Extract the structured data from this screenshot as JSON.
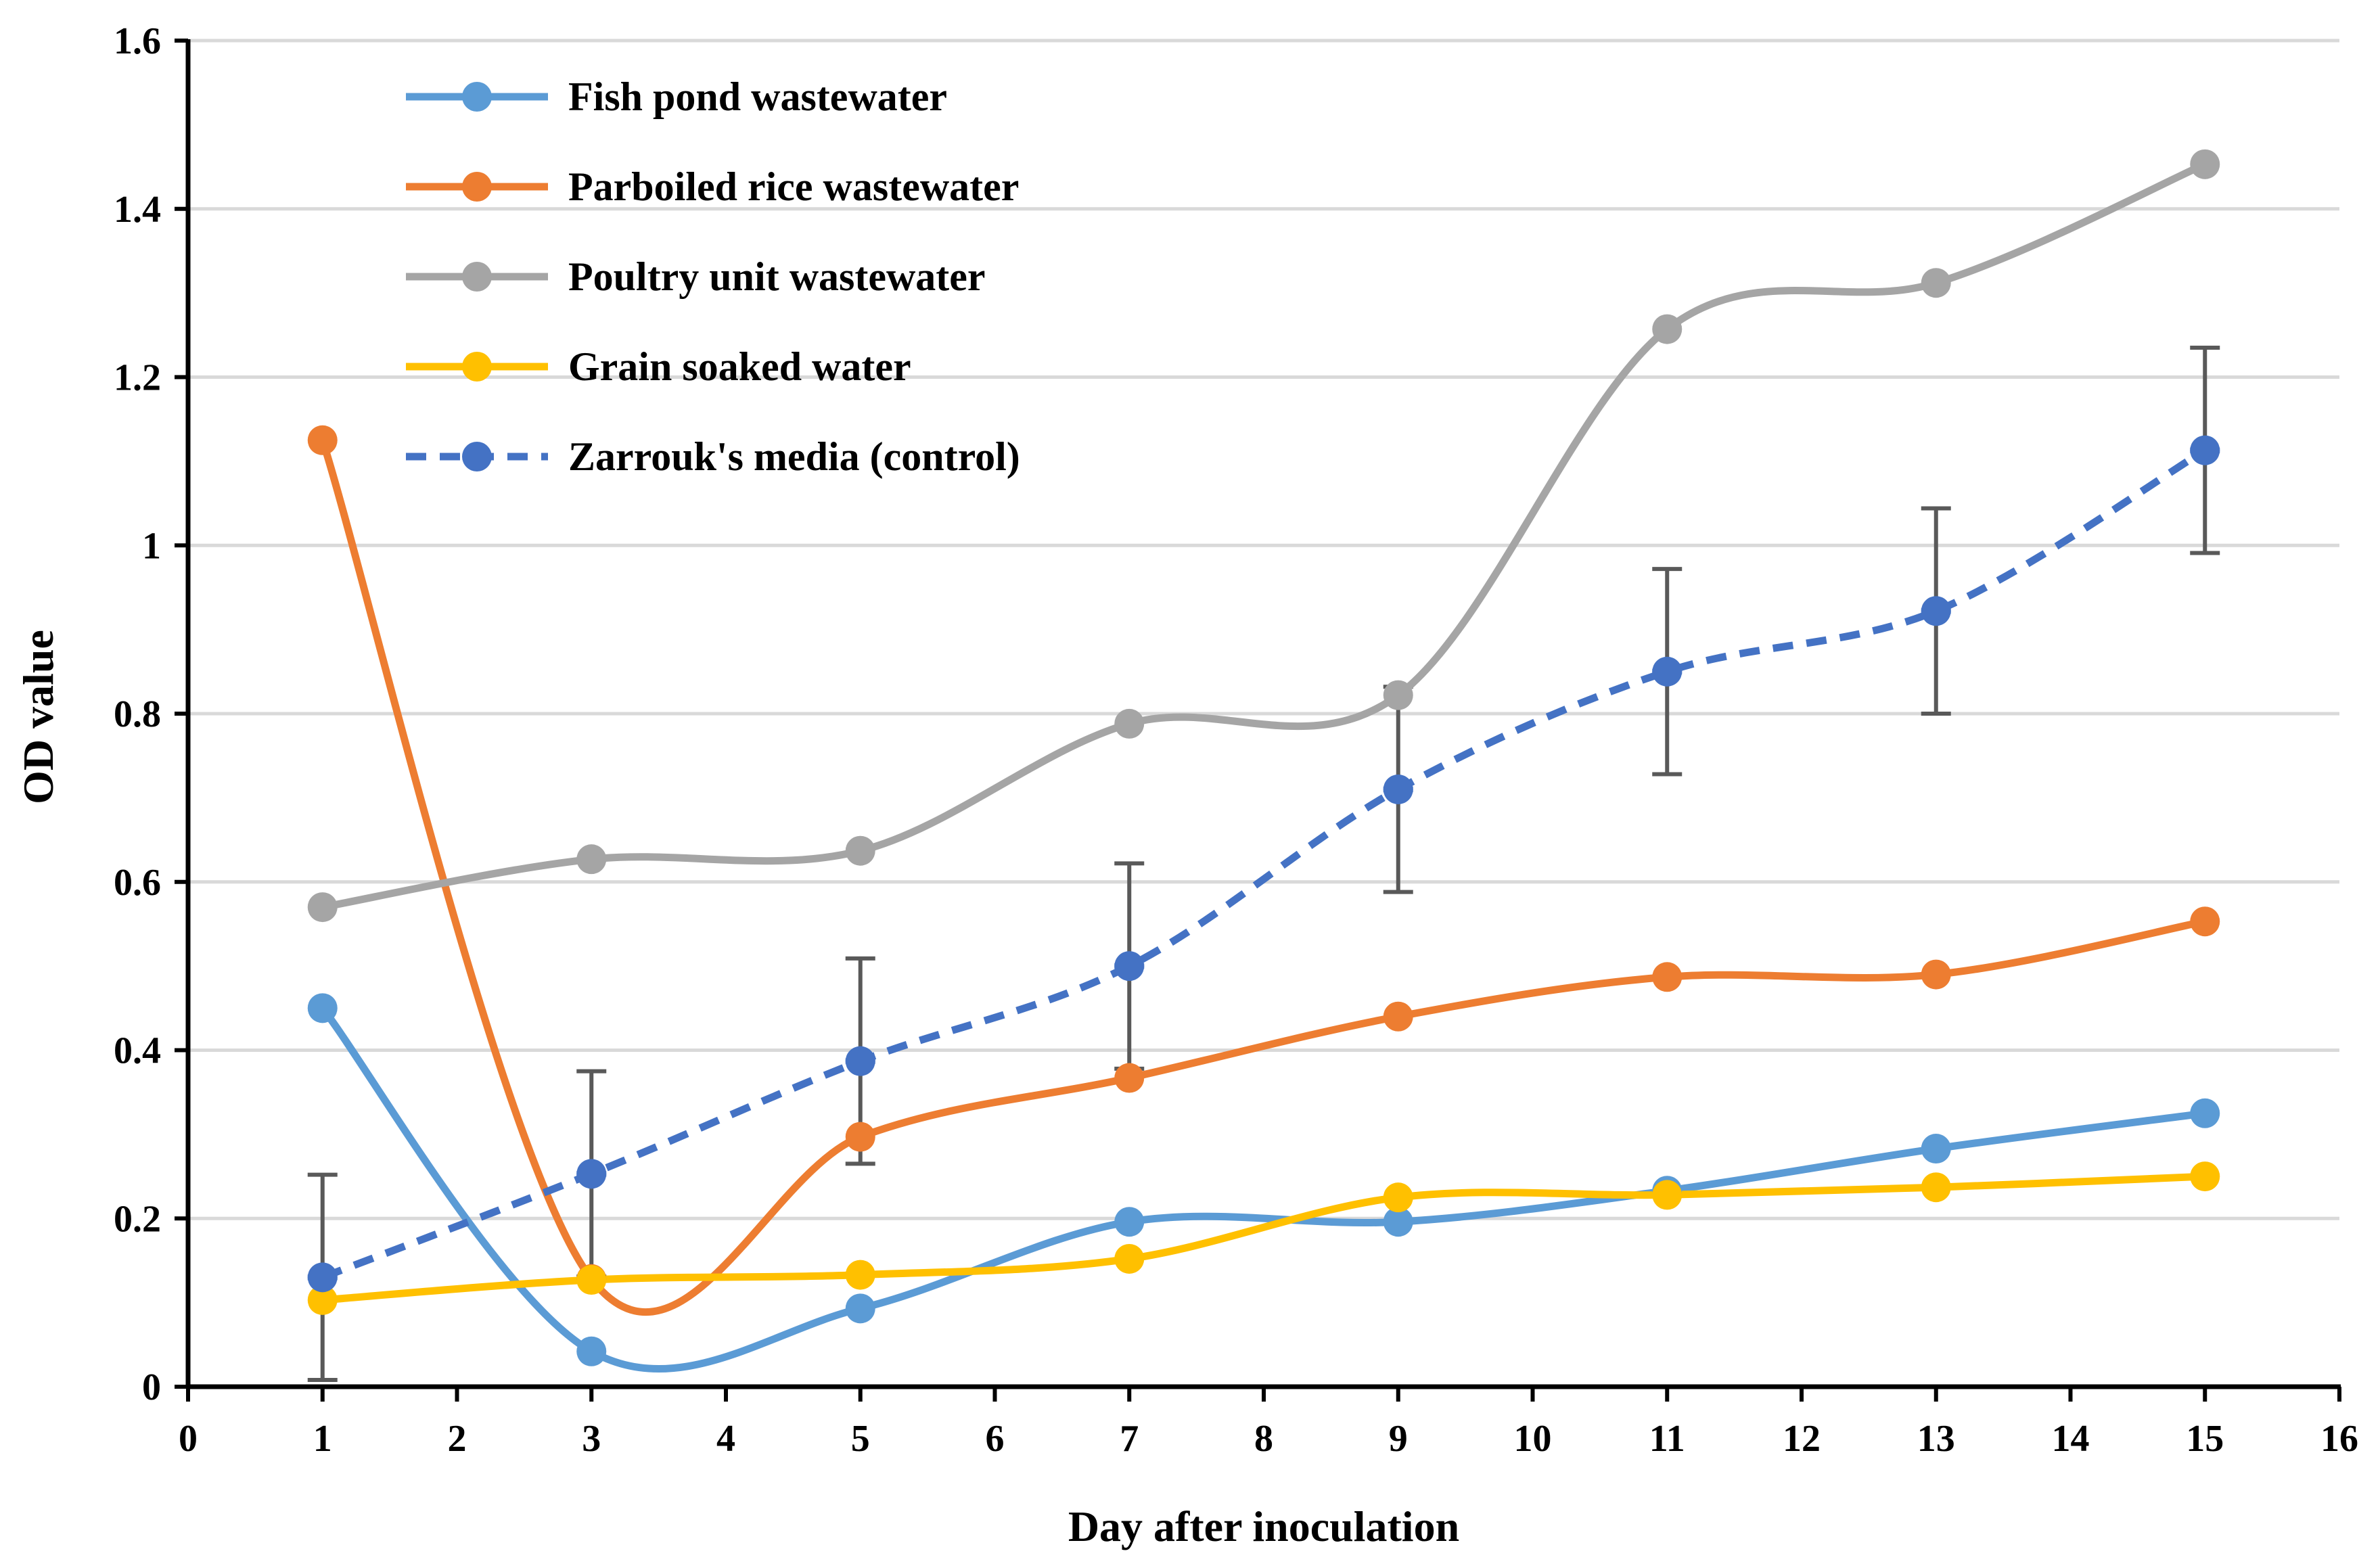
{
  "chart_data": {
    "type": "line",
    "title": "",
    "xlabel": "Day after inoculation",
    "ylabel": "OD value",
    "xlim": [
      0,
      16
    ],
    "ylim": [
      0,
      1.6
    ],
    "x_ticks": [
      0,
      1,
      2,
      3,
      4,
      5,
      6,
      7,
      8,
      9,
      10,
      11,
      12,
      13,
      14,
      15,
      16
    ],
    "x_tick_labels": [
      "0",
      "1",
      "2",
      "3",
      "4",
      "5",
      "6",
      "7",
      "8",
      "9",
      "10",
      "11",
      "12",
      "13",
      "14",
      "15",
      "16"
    ],
    "y_ticks": [
      0,
      0.2,
      0.4,
      0.6,
      0.8,
      1.0,
      1.2,
      1.4,
      1.6
    ],
    "y_tick_labels": [
      "0",
      "0.2",
      "0.4",
      "0.6",
      "0.8",
      "1",
      "1.2",
      "1.4",
      "1.6"
    ],
    "grid": "horizontal",
    "legend_position": "top-left",
    "x": [
      1,
      3,
      5,
      7,
      9,
      11,
      13,
      15
    ],
    "series": [
      {
        "name": "Fish pond wastewater",
        "color": "#5B9BD5",
        "style": "solid",
        "smooth": true,
        "values": [
          0.45,
          0.042,
          0.093,
          0.196,
          0.196,
          0.233,
          0.283,
          0.325
        ]
      },
      {
        "name": "Parboiled rice wastewater",
        "color": "#ED7D31",
        "style": "solid",
        "smooth": true,
        "values": [
          1.125,
          0.128,
          0.297,
          0.367,
          0.44,
          0.487,
          0.49,
          0.553
        ]
      },
      {
        "name": "Poultry unit wastewater",
        "color": "#A5A5A5",
        "style": "solid",
        "smooth": true,
        "values": [
          0.57,
          0.627,
          0.637,
          0.788,
          0.822,
          1.257,
          1.312,
          1.453
        ]
      },
      {
        "name": "Grain soaked water",
        "color": "#FFC000",
        "style": "solid",
        "smooth": true,
        "values": [
          0.103,
          0.127,
          0.133,
          0.152,
          0.225,
          0.228,
          0.237,
          0.25
        ]
      },
      {
        "name": "Zarrouk's media (control)",
        "color": "#4472C4",
        "style": "dashed",
        "smooth": true,
        "values": [
          0.13,
          0.253,
          0.387,
          0.5,
          0.71,
          0.85,
          0.922,
          1.113
        ],
        "error": [
          0.122,
          0.122,
          0.122,
          0.122,
          0.122,
          0.122,
          0.122,
          0.122
        ]
      }
    ]
  }
}
